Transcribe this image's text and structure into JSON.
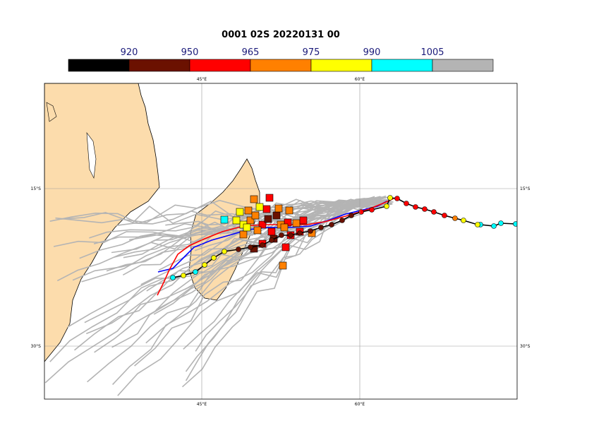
{
  "title": "0001 02S 20220131 00",
  "colorbar": {
    "labels": [
      "920",
      "950",
      "965",
      "975",
      "990",
      "1005"
    ]
  },
  "map": {
    "lon_labels": [
      "45°E",
      "60°E"
    ],
    "lat_labels": [
      "15°S",
      "30°S"
    ]
  }
}
